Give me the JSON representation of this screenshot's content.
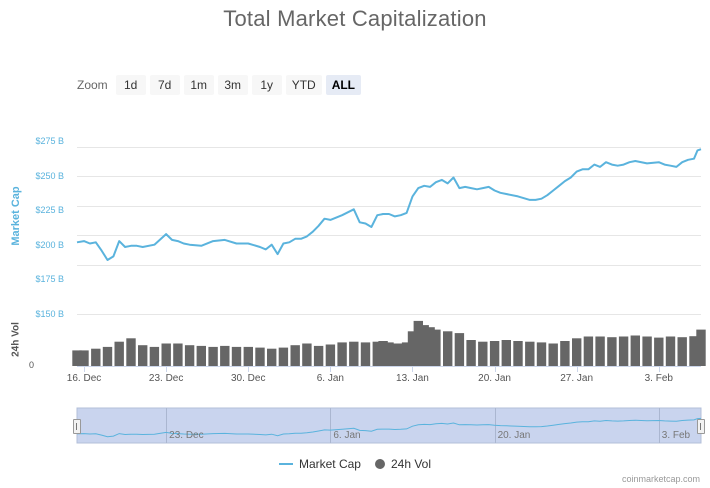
{
  "chart_data": {
    "type": "line",
    "title": "Total Market Capitalization",
    "ylabel": "Market Cap",
    "ylabel_volume": "24h Vol",
    "ylim": [
      162,
      280
    ],
    "yticks": [
      "$175 B",
      "$200 B",
      "$225 B",
      "$250 B",
      "$275 B"
    ],
    "ytick_values": [
      175,
      200,
      225,
      250,
      275
    ],
    "volume_ytick": "$150 B",
    "volume_zero_tick": "0",
    "volume_max": 150,
    "xticks": [
      "16. Dec",
      "23. Dec",
      "30. Dec",
      "6. Jan",
      "13. Jan",
      "20. Jan",
      "27. Jan",
      "3. Feb"
    ],
    "xtick_days": [
      0,
      7,
      14,
      21,
      28,
      35,
      42,
      49
    ],
    "x_range_days": [
      -0.6,
      52.6
    ],
    "grid": true,
    "legend_position": "bottom-center",
    "series": [
      {
        "name": "Market Cap",
        "color": "#5ab3dd",
        "x": [
          -0.6,
          0,
          0.5,
          1,
          1.5,
          2,
          2.5,
          3,
          3.5,
          4,
          4.5,
          5,
          6,
          7,
          7.5,
          8,
          8.5,
          9,
          10,
          11,
          12,
          13,
          14,
          15,
          15.5,
          16,
          16.5,
          17,
          17.5,
          18,
          18.5,
          19,
          19.5,
          20,
          20.5,
          21,
          22,
          23,
          23.5,
          24,
          24.5,
          25,
          25.5,
          26,
          26.5,
          27,
          27.5,
          28,
          28.5,
          29,
          29.5,
          30,
          30.5,
          31,
          31.5,
          32,
          32.5,
          33,
          33.5,
          34,
          34.5,
          35,
          35.5,
          36,
          37,
          38,
          38.5,
          39,
          39.5,
          40,
          40.5,
          41,
          41.5,
          42,
          42.5,
          43,
          43.5,
          44,
          44.5,
          45,
          45.5,
          46,
          46.5,
          47,
          48,
          49,
          49.5,
          50,
          50.5,
          51,
          51.5,
          52,
          52.3,
          52.6
        ],
        "values": [
          194,
          195,
          193,
          194,
          187,
          179,
          182,
          195,
          190,
          191,
          191,
          190,
          192,
          201,
          196,
          195,
          193,
          192,
          191,
          195,
          196,
          193,
          193,
          190,
          188,
          192,
          184,
          193,
          194,
          197,
          197,
          199,
          203,
          208,
          214,
          213,
          217,
          222,
          211,
          210,
          207,
          217,
          218,
          218,
          216,
          217,
          219,
          233,
          240,
          242,
          241,
          245,
          247,
          244,
          249,
          240,
          241,
          240,
          239,
          240,
          241,
          238,
          236,
          235,
          233,
          230,
          230,
          231,
          234,
          238,
          242,
          246,
          249,
          254,
          256,
          256,
          260,
          258,
          262,
          260,
          259,
          260,
          262,
          263,
          261,
          262,
          260,
          259,
          258,
          262,
          264,
          265,
          272,
          273
        ]
      },
      {
        "name": "24h Vol",
        "color": "#666666",
        "x": [
          -0.6,
          0,
          1,
          2,
          3,
          4,
          5,
          6,
          7,
          8,
          9,
          10,
          11,
          12,
          13,
          14,
          15,
          16,
          17,
          18,
          19,
          20,
          21,
          22,
          23,
          24,
          25,
          25.5,
          26,
          26.5,
          27,
          27.5,
          28,
          28.5,
          29,
          29.5,
          30,
          31,
          32,
          33,
          34,
          35,
          36,
          37,
          38,
          39,
          40,
          41,
          42,
          43,
          44,
          45,
          46,
          47,
          48,
          49,
          50,
          51,
          52,
          52.6
        ],
        "values": [
          45,
          45,
          50,
          55,
          70,
          80,
          60,
          55,
          65,
          65,
          60,
          58,
          55,
          58,
          55,
          55,
          53,
          50,
          53,
          60,
          65,
          58,
          62,
          68,
          70,
          68,
          70,
          72,
          68,
          65,
          65,
          68,
          100,
          130,
          118,
          112,
          105,
          100,
          95,
          75,
          70,
          72,
          75,
          72,
          70,
          68,
          65,
          72,
          80,
          85,
          85,
          83,
          85,
          88,
          85,
          82,
          85,
          83,
          86,
          105
        ]
      }
    ]
  },
  "chart": {
    "zoom_label": "Zoom",
    "zoom_buttons": [
      "1d",
      "7d",
      "1m",
      "3m",
      "1y",
      "YTD",
      "ALL"
    ],
    "zoom_active": "ALL",
    "navigator_ticks": [
      "23. Dec",
      "6. Jan",
      "20. Jan",
      "3. Feb"
    ],
    "navigator_tick_days": [
      7,
      21,
      35,
      49
    ],
    "legend": [
      "Market Cap",
      "24h Vol"
    ],
    "credit": "coinmarketcap.com",
    "colors": {
      "line": "#5ab3dd",
      "volume": "#666666",
      "navigator_fill": "#c9d4ee",
      "grid": "#e6e6e6"
    }
  }
}
